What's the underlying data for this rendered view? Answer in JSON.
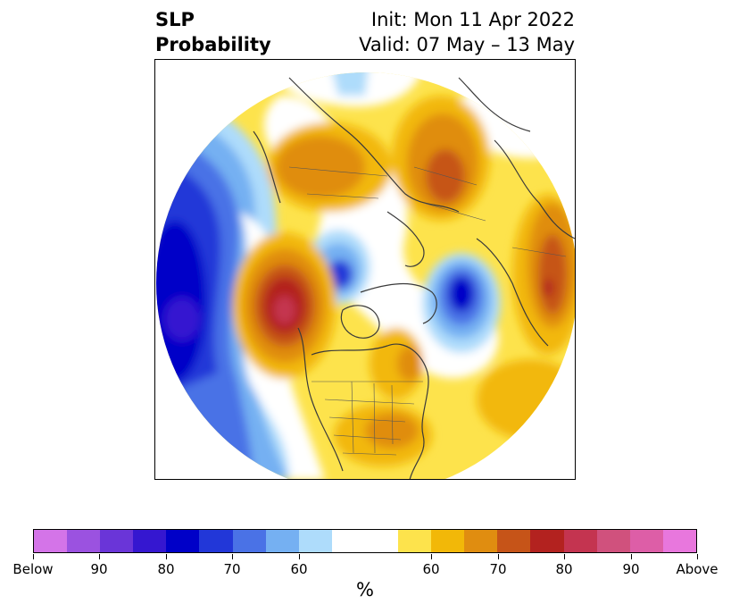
{
  "title": {
    "left_line1": "SLP",
    "left_line2": "Probability",
    "init": "Init: Mon 11 Apr 2022",
    "valid": "Valid: 07 May – 13 May"
  },
  "colorbar": {
    "below_colors": [
      "#d474e8",
      "#9b52e0",
      "#6a35d8",
      "#3517d0",
      "#0000c8",
      "#2237d8",
      "#4a72e6",
      "#75b0f2",
      "#aedcfb"
    ],
    "neutral_color": "#ffffff",
    "above_colors": [
      "#fde34c",
      "#f2b808",
      "#e08d10",
      "#c65418",
      "#b3221f",
      "#c43450",
      "#d0517d",
      "#dd5ea7",
      "#e877dd"
    ],
    "tick_labels": [
      "Below",
      "90",
      "80",
      "70",
      "60",
      "60",
      "70",
      "80",
      "90",
      "Above"
    ],
    "unit": "%"
  },
  "map": {
    "projection": "north-polar-stereographic",
    "features": [
      "coastlines",
      "country-borders",
      "state-borders"
    ]
  }
}
